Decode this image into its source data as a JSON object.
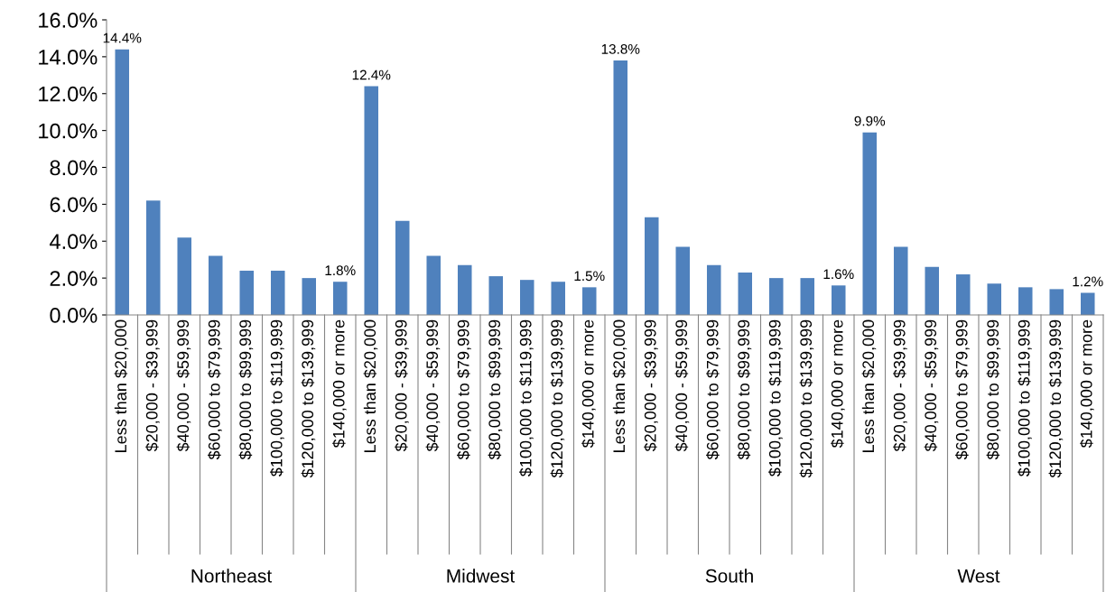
{
  "chart_data": {
    "type": "bar",
    "color": "#4f81bd",
    "categories": [
      "Less than $20,000",
      "$20,000 - $39,999",
      "$40,000 - $59,999",
      "$60,000 to $79,999",
      "$80,000 to $99,999",
      "$100,000 to $119,999",
      "$120,000 to $139,999",
      "$140,000 or more",
      "Less than $20,000",
      "$20,000 - $39,999",
      "$40,000 - $59,999",
      "$60,000 to $79,999",
      "$80,000 to $99,999",
      "$100,000 to $119,999",
      "$120,000 to $139,999",
      "$140,000 or more",
      "Less than $20,000",
      "$20,000 - $39,999",
      "$40,000 - $59,999",
      "$60,000 to $79,999",
      "$80,000 to $99,999",
      "$100,000 to $119,999",
      "$120,000 to $139,999",
      "$140,000 or more",
      "Less than $20,000",
      "$20,000 - $39,999",
      "$40,000 - $59,999",
      "$60,000 to $79,999",
      "$80,000 to $99,999",
      "$100,000 to $119,999",
      "$120,000 to $139,999",
      "$140,000 or more"
    ],
    "values": [
      14.4,
      6.2,
      4.2,
      3.2,
      2.4,
      2.4,
      2.0,
      1.8,
      12.4,
      5.1,
      3.2,
      2.7,
      2.1,
      1.9,
      1.8,
      1.5,
      13.8,
      5.3,
      3.7,
      2.7,
      2.3,
      2.0,
      2.0,
      1.6,
      9.9,
      3.7,
      2.6,
      2.2,
      1.7,
      1.5,
      1.4,
      1.2
    ],
    "value_labels": [
      "14.4%",
      null,
      null,
      null,
      null,
      null,
      null,
      "1.8%",
      "12.4%",
      null,
      null,
      null,
      null,
      null,
      null,
      "1.5%",
      "13.8%",
      null,
      null,
      null,
      null,
      null,
      null,
      "1.6%",
      "9.9%",
      null,
      null,
      null,
      null,
      null,
      null,
      "1.2%"
    ],
    "annotations": [
      "Northeast",
      "Midwest",
      "South",
      "West"
    ],
    "ylim": [
      0,
      16
    ],
    "yticks": [
      {
        "value": 0,
        "label": "0.0%"
      },
      {
        "value": 2,
        "label": "2.0%"
      },
      {
        "value": 4,
        "label": "4.0%"
      },
      {
        "value": 6,
        "label": "6.0%"
      },
      {
        "value": 8,
        "label": "8.0%"
      },
      {
        "value": 10,
        "label": "10.0%"
      },
      {
        "value": 12,
        "label": "12.0%"
      },
      {
        "value": 14,
        "label": "14.0%"
      },
      {
        "value": 16,
        "label": "16.0%"
      }
    ],
    "grid": false
  }
}
